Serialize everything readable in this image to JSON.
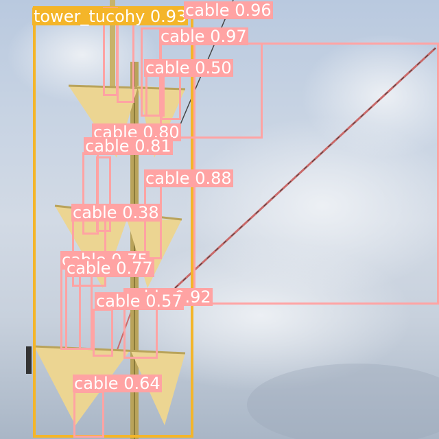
{
  "colors": {
    "cable_box": "#ffa3a3",
    "tower_box": "#f4b529",
    "label_text": "#ffffff"
  },
  "detections": {
    "tower": {
      "label": "tower_tucohy 0.93"
    },
    "cables": [
      {
        "label": "cable 0.96"
      },
      {
        "label": "cable 0.97"
      },
      {
        "label": "cable 0.50"
      },
      {
        "label": "cable 0.80"
      },
      {
        "label": "cable 0.81"
      },
      {
        "label": "cable 0.88"
      },
      {
        "label": "cable 0.38"
      },
      {
        "label": "cable 0.75"
      },
      {
        "label": "cable 0.77"
      },
      {
        "label": "cable 0.92"
      },
      {
        "label": "cable 0.57"
      },
      {
        "label": "cable 0.64"
      }
    ]
  }
}
